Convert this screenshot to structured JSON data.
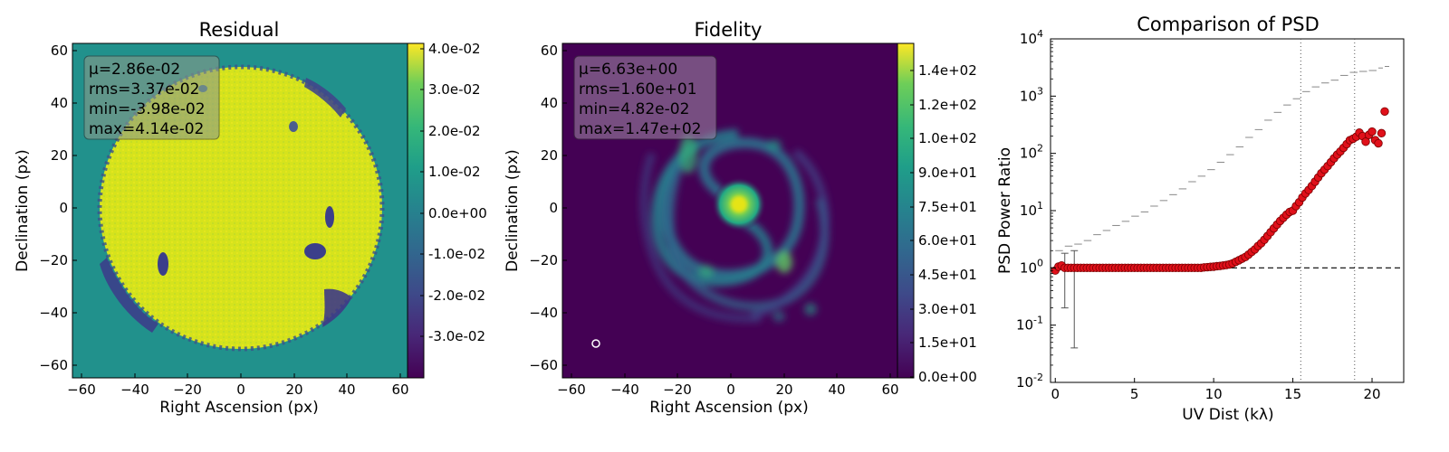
{
  "colors": {
    "residual_background": "#21918c",
    "residual_disk": "#d2e21b",
    "fidelity_background": "#440154",
    "psd_marker_fill": "#e0101a",
    "psd_marker_edge": "#7a0000",
    "psd_upper_line": "#888888",
    "statbox_residual_fill": "#8a9a8a",
    "statbox_fidelity_fill": "#9a82a0"
  },
  "panels": {
    "residual": {
      "title": "Residual",
      "xlabel": "Right Ascension (px)",
      "ylabel": "Declination (px)",
      "xticks": [
        "−60",
        "−40",
        "−20",
        "0",
        "20",
        "40",
        "60"
      ],
      "yticks": [
        "60",
        "40",
        "20",
        "0",
        "−20",
        "−40",
        "−60"
      ],
      "stats": {
        "mu": "μ=2.86e-02",
        "rms": "rms=3.37e-02",
        "min": "min=-3.98e-02",
        "max": "max=4.14e-02"
      },
      "colorbar_ticks": [
        "4.0e-02",
        "3.0e-02",
        "2.0e-02",
        "1.0e-02",
        "0.0e+00",
        "-1.0e-02",
        "-2.0e-02",
        "-3.0e-02"
      ]
    },
    "fidelity": {
      "title": "Fidelity",
      "xlabel": "Right Ascension (px)",
      "ylabel": "Declination (px)",
      "xticks": [
        "−60",
        "−40",
        "−20",
        "0",
        "20",
        "40",
        "60"
      ],
      "yticks": [
        "60",
        "40",
        "20",
        "0",
        "−20",
        "−40",
        "−60"
      ],
      "stats": {
        "mu": "μ=6.63e+00",
        "rms": "rms=1.60e+01",
        "min": "min=4.82e-02",
        "max": "max=1.47e+02"
      },
      "colorbar_ticks": [
        "1.4e+02",
        "1.2e+02",
        "1.0e+02",
        "9.0e+01",
        "7.5e+01",
        "6.0e+01",
        "4.5e+01",
        "3.0e+01",
        "1.5e+01",
        "0.0e+00"
      ]
    }
  },
  "chart_data": {
    "type": "scatter",
    "title": "Comparison of PSD",
    "xlabel": "UV Dist (kλ)",
    "ylabel": "PSD Power Ratio",
    "xlim": [
      -0.3,
      22
    ],
    "ylim": [
      0.01,
      10000
    ],
    "yscale": "log",
    "xticks": [
      "0",
      "5",
      "10",
      "15",
      "20"
    ],
    "yticks": [
      "10^4",
      "10^3",
      "10^2",
      "10^1",
      "10^0",
      "10^-1",
      "10^-2"
    ],
    "reference_line_y": 1,
    "vertical_lines_x": [
      15.5,
      18.9
    ],
    "series": [
      {
        "type": "scatter",
        "x": [
          0.0,
          0.2,
          0.4,
          0.6,
          0.8,
          1.0,
          1.2,
          1.4,
          1.6,
          1.8,
          2.0,
          2.2,
          2.4,
          2.6,
          2.8,
          3.0,
          3.2,
          3.4,
          3.6,
          3.8,
          4.0,
          4.2,
          4.4,
          4.6,
          4.8,
          5.0,
          5.2,
          5.4,
          5.6,
          5.8,
          6.0,
          6.2,
          6.4,
          6.6,
          6.8,
          7.0,
          7.2,
          7.4,
          7.6,
          7.8,
          8.0,
          8.2,
          8.4,
          8.6,
          8.8,
          9.0,
          9.2,
          9.4,
          9.6,
          9.8,
          10.0,
          10.2,
          10.4,
          10.6,
          10.8,
          11.0,
          11.2,
          11.4,
          11.6,
          11.8,
          12.0,
          12.2,
          12.4,
          12.6,
          12.8,
          13.0,
          13.2,
          13.4,
          13.6,
          13.8,
          14.0,
          14.2,
          14.4,
          14.6,
          14.8,
          15.0,
          15.2,
          15.4,
          15.6,
          15.8,
          16.0,
          16.2,
          16.4,
          16.6,
          16.8,
          17.0,
          17.2,
          17.4,
          17.6,
          17.8,
          18.0,
          18.2,
          18.4,
          18.6,
          18.8,
          19.0,
          19.2,
          19.4,
          19.6,
          19.8,
          20.0,
          20.2,
          20.4,
          20.6,
          20.8
        ],
        "y": [
          0.9,
          1.05,
          1.1,
          1.0,
          1.0,
          1.0,
          1.0,
          1.0,
          1.0,
          1.0,
          1.0,
          1.0,
          1.0,
          1.0,
          1.0,
          1.0,
          1.0,
          1.0,
          1.0,
          1.0,
          1.0,
          1.0,
          1.0,
          1.0,
          1.0,
          1.0,
          1.0,
          1.0,
          1.0,
          1.0,
          1.0,
          1.0,
          1.0,
          1.0,
          1.0,
          1.0,
          1.0,
          1.0,
          1.0,
          1.0,
          1.0,
          1.0,
          1.0,
          1.0,
          1.0,
          1.0,
          1.0,
          1.02,
          1.03,
          1.04,
          1.05,
          1.07,
          1.08,
          1.1,
          1.12,
          1.15,
          1.2,
          1.28,
          1.36,
          1.45,
          1.55,
          1.7,
          1.9,
          2.1,
          2.4,
          2.7,
          3.1,
          3.6,
          4.2,
          4.9,
          5.7,
          6.6,
          7.5,
          8.5,
          9.5,
          10,
          12,
          14,
          17,
          20,
          23,
          27,
          32,
          38,
          45,
          52,
          60,
          70,
          82,
          95,
          108,
          125,
          145,
          170,
          180,
          195,
          230,
          200,
          160,
          210,
          240,
          170,
          150,
          225,
          540
        ],
        "error_bars": [
          {
            "x": 0.6,
            "low": 0.2,
            "high": 1.8
          },
          {
            "x": 1.2,
            "low": 0.04,
            "high": 2.0
          }
        ]
      },
      {
        "type": "step",
        "x": [
          0.0,
          0.6,
          1.2,
          1.8,
          2.4,
          3.0,
          3.6,
          4.2,
          4.8,
          5.4,
          6.0,
          6.6,
          7.2,
          7.8,
          8.4,
          9.0,
          9.6,
          10.2,
          10.8,
          11.4,
          12.0,
          12.6,
          13.2,
          13.8,
          14.4,
          15.0,
          15.6,
          16.2,
          16.8,
          17.4,
          18.0,
          18.6,
          19.2,
          19.8,
          20.4,
          20.8
        ],
        "y": [
          2.0,
          2.4,
          2.6,
          3.0,
          3.8,
          4.5,
          5.5,
          6.5,
          8.0,
          9.5,
          12,
          15,
          19,
          24,
          32,
          40,
          52,
          70,
          95,
          130,
          190,
          260,
          380,
          520,
          700,
          900,
          1200,
          1450,
          1700,
          1900,
          2300,
          2600,
          2700,
          2800,
          3100,
          3300
        ]
      }
    ]
  }
}
